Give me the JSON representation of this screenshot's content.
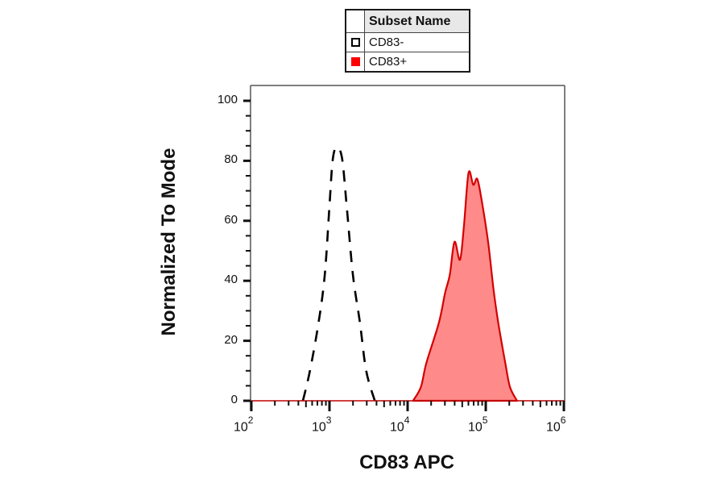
{
  "chart_data": {
    "type": "area",
    "title": "",
    "xlabel": "CD83 APC",
    "ylabel": "Normalized To Mode",
    "x_scale": "log",
    "xlim": [
      100,
      1000000
    ],
    "ylim": [
      0,
      100
    ],
    "grid": false,
    "x_ticks": [
      {
        "exp": "2",
        "value": 100
      },
      {
        "exp": "3",
        "value": 1000
      },
      {
        "exp": "4",
        "value": 10000
      },
      {
        "exp": "5",
        "value": 100000
      },
      {
        "exp": "6",
        "value": 1000000
      }
    ],
    "y_ticks": [
      "0",
      "20",
      "40",
      "60",
      "80",
      "100"
    ],
    "legend": {
      "position": "top-center",
      "header": "Subset Name",
      "entries": [
        "CD83-",
        "CD83+"
      ]
    },
    "series": [
      {
        "name": "CD83-",
        "style": "dashed-line",
        "color": "#000000",
        "fill": null,
        "log10_x": [
          2.66,
          2.75,
          2.86,
          2.94,
          3.0,
          3.04,
          3.09,
          3.16,
          3.22,
          3.3,
          3.39,
          3.47,
          3.58
        ],
        "y": [
          0,
          10,
          26,
          42,
          65,
          80,
          84.5,
          81,
          65,
          42,
          26,
          10,
          0
        ]
      },
      {
        "name": "CD83+",
        "style": "filled",
        "color": "#d40000",
        "fill": "#ff8a8a",
        "log10_x": [
          4.07,
          4.17,
          4.24,
          4.4,
          4.48,
          4.54,
          4.6,
          4.67,
          4.72,
          4.78,
          4.84,
          4.89,
          4.94,
          5.03,
          5.1,
          5.16,
          5.25,
          5.31,
          5.4
        ],
        "y": [
          0,
          4.6,
          12.6,
          26,
          36,
          42,
          53,
          47,
          58,
          76,
          72,
          74,
          68,
          53,
          37,
          26,
          12.6,
          4.6,
          0
        ]
      }
    ]
  },
  "legend": {
    "header": "Subset Name",
    "items": [
      {
        "label": "CD83-",
        "swatch_fill": "#ffffff",
        "swatch_border": "#000000"
      },
      {
        "label": "CD83+",
        "swatch_fill": "#ff0000",
        "swatch_border": "#ff0000"
      }
    ]
  },
  "axes": {
    "xlabel": "CD83 APC",
    "ylabel": "Normalized To Mode",
    "y_ticks": [
      "0",
      "20",
      "40",
      "60",
      "80",
      "100"
    ],
    "x_ticks": [
      {
        "base": "10",
        "exp": "2"
      },
      {
        "base": "10",
        "exp": "3"
      },
      {
        "base": "10",
        "exp": "4"
      },
      {
        "base": "10",
        "exp": "5"
      },
      {
        "base": "10",
        "exp": "6"
      }
    ]
  }
}
